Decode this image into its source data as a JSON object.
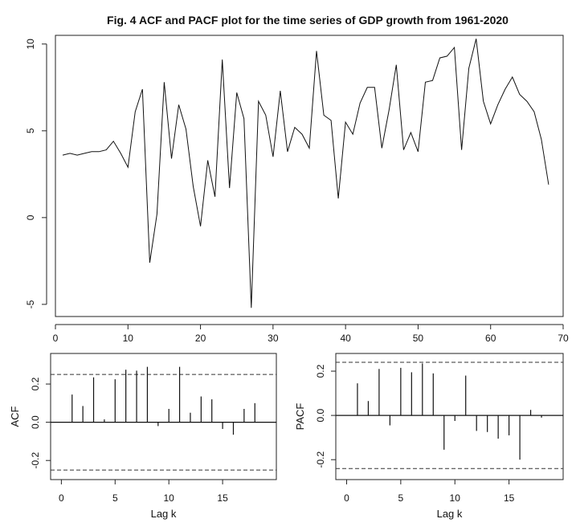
{
  "title": "Fig. 4 ACF and PACF plot for the time series of  GDP growth from 1961-2020",
  "chart_data": [
    {
      "type": "line",
      "name": "gdp-series",
      "x": [
        1,
        2,
        3,
        4,
        5,
        6,
        7,
        8,
        9,
        10,
        11,
        12,
        13,
        14,
        15,
        16,
        17,
        18,
        19,
        20,
        21,
        22,
        23,
        24,
        25,
        26,
        27,
        28,
        29,
        30,
        31,
        32,
        33,
        34,
        35,
        36,
        37,
        38,
        39,
        40,
        41,
        42,
        43,
        44,
        45,
        46,
        47,
        48,
        49,
        50,
        51,
        52,
        53,
        54,
        55,
        56,
        57,
        58,
        59,
        60,
        61,
        62,
        63,
        64,
        65,
        66,
        67,
        68
      ],
      "values": [
        3.6,
        3.7,
        3.6,
        3.7,
        3.8,
        3.8,
        3.9,
        4.4,
        3.7,
        2.9,
        6.1,
        7.4,
        -2.6,
        0.2,
        7.8,
        3.4,
        6.5,
        5.1,
        1.8,
        -0.5,
        3.3,
        1.2,
        9.1,
        1.7,
        7.2,
        5.7,
        -5.2,
        6.7,
        5.9,
        3.5,
        7.3,
        3.8,
        5.2,
        4.8,
        4.0,
        9.6,
        5.9,
        5.6,
        1.1,
        5.5,
        4.8,
        6.6,
        7.5,
        7.5,
        4.0,
        6.2,
        8.8,
        3.9,
        4.9,
        3.8,
        7.8,
        7.9,
        9.2,
        9.3,
        9.8,
        3.9,
        8.6,
        10.3,
        6.7,
        5.4,
        6.5,
        7.4,
        8.1,
        7.1,
        6.7,
        6.1,
        4.5,
        1.9
      ],
      "xlabel": "",
      "ylabel": "",
      "xlim": [
        0,
        70
      ],
      "ylim": [
        -5.7,
        10.5
      ],
      "xticks": [
        "0",
        "10",
        "20",
        "30",
        "40",
        "50",
        "60",
        "70"
      ],
      "yticks": [
        "-5",
        "0",
        "5",
        "10"
      ]
    },
    {
      "type": "bar",
      "name": "acf",
      "lags": [
        1,
        2,
        3,
        4,
        5,
        6,
        7,
        8,
        9,
        10,
        11,
        12,
        13,
        14,
        15,
        16,
        17,
        18
      ],
      "values": [
        0.145,
        0.085,
        0.235,
        0.015,
        0.225,
        0.275,
        0.27,
        0.29,
        -0.02,
        0.07,
        0.29,
        0.05,
        0.135,
        0.12,
        -0.035,
        -0.065,
        0.07,
        0.1
      ],
      "conf_upper": 0.25,
      "conf_lower": -0.25,
      "xlabel": "Lag k",
      "ylabel": "ACF",
      "xlim": [
        -1,
        20
      ],
      "ylim": [
        -0.3,
        0.36
      ],
      "xticks": [
        "0",
        "5",
        "10",
        "15"
      ],
      "yticks": [
        "-0.2",
        "0.0",
        "0.2"
      ]
    },
    {
      "type": "bar",
      "name": "pacf",
      "lags": [
        1,
        2,
        3,
        4,
        5,
        6,
        7,
        8,
        9,
        10,
        11,
        12,
        13,
        14,
        15,
        16,
        17,
        18
      ],
      "values": [
        0.145,
        0.065,
        0.21,
        -0.045,
        0.215,
        0.195,
        0.235,
        0.19,
        -0.155,
        -0.025,
        0.18,
        -0.07,
        -0.075,
        -0.105,
        -0.09,
        -0.2,
        0.025,
        -0.01
      ],
      "conf_upper": 0.24,
      "conf_lower": -0.24,
      "xlabel": "Lag k",
      "ylabel": "PACF",
      "xlim": [
        -1,
        20
      ],
      "ylim": [
        -0.29,
        0.28
      ],
      "xticks": [
        "0",
        "5",
        "10",
        "15"
      ],
      "yticks": [
        "-0.2",
        "0.0",
        "0.2"
      ]
    }
  ]
}
